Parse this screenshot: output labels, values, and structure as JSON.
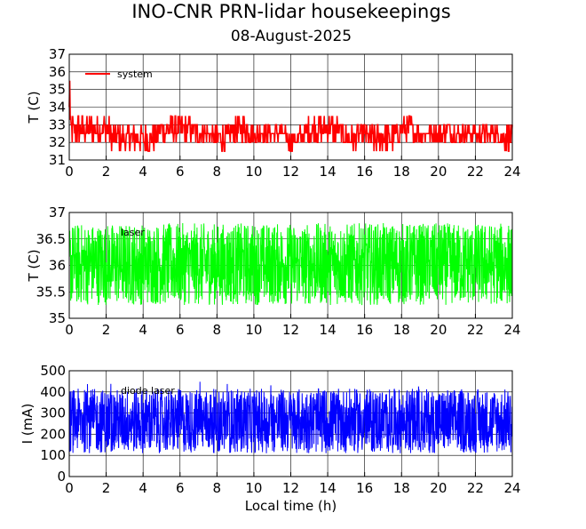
{
  "title": "INO-CNR PRN-lidar housekeepings",
  "subtitle": "08-August-2025",
  "chart_data": [
    {
      "type": "line",
      "ylabel": "T (C)",
      "xlabel": "",
      "xlim": [
        0,
        24
      ],
      "ylim": [
        31,
        37
      ],
      "xticks": [
        0,
        2,
        4,
        6,
        8,
        10,
        12,
        14,
        16,
        18,
        20,
        22,
        24
      ],
      "yticks": [
        31,
        32,
        33,
        34,
        35,
        36,
        37
      ],
      "grid": true,
      "legend_position": "top-left",
      "series": [
        {
          "name": "system",
          "color": "#ff0000",
          "x": [
            0.0,
            0.02,
            0.04,
            0.1,
            0.5,
            1.0,
            1.5,
            2.0,
            2.5,
            3.0,
            3.5,
            4.0,
            4.5,
            5.0,
            5.5,
            6.0,
            6.5,
            7.0,
            7.5,
            8.0,
            8.5,
            9.0,
            9.5,
            10.0,
            10.5,
            11.0,
            11.5,
            12.0,
            12.5,
            13.0,
            13.5,
            14.0,
            14.5,
            15.0,
            15.5,
            16.0,
            16.5,
            17.0,
            17.5,
            18.0,
            18.5,
            19.0,
            19.5,
            20.0,
            20.5,
            21.0,
            21.5,
            22.0,
            22.5,
            23.0,
            23.5,
            24.0
          ],
          "y": [
            34.0,
            36.5,
            33.5,
            32.5,
            33.0,
            32.5,
            32.5,
            33.0,
            32.0,
            32.5,
            32.5,
            32.0,
            32.5,
            33.0,
            33.0,
            33.0,
            32.5,
            32.5,
            32.5,
            32.0,
            32.5,
            33.0,
            33.0,
            32.5,
            32.5,
            32.5,
            32.5,
            32.0,
            32.5,
            33.0,
            33.0,
            33.0,
            32.5,
            32.5,
            32.5,
            32.5,
            32.0,
            32.5,
            32.5,
            32.5,
            33.0,
            32.5,
            32.5,
            32.5,
            33.0,
            32.5,
            32.5,
            32.5,
            33.0,
            32.5,
            32.5,
            32.0
          ],
          "band_low": [
            31.5,
            31.5,
            31.5,
            31.5,
            32.0,
            32.0,
            32.0,
            32.0,
            31.5,
            31.5,
            31.5,
            31.5,
            31.5,
            32.0,
            32.0,
            32.0,
            32.0,
            32.0,
            32.0,
            31.5,
            31.5,
            32.0,
            32.0,
            32.0,
            32.0,
            32.0,
            32.0,
            31.5,
            31.5,
            32.0,
            32.0,
            32.0,
            32.0,
            31.5,
            31.5,
            32.0,
            31.5,
            31.5,
            31.5,
            32.0,
            32.0,
            32.0,
            32.0,
            32.0,
            32.0,
            32.0,
            32.0,
            32.0,
            32.0,
            32.0,
            31.5,
            31.5
          ],
          "band_high": [
            34.0,
            36.5,
            33.5,
            33.5,
            33.5,
            33.5,
            33.5,
            33.5,
            33.0,
            33.0,
            33.0,
            33.0,
            33.0,
            33.5,
            33.5,
            33.5,
            33.5,
            33.0,
            33.0,
            33.0,
            33.0,
            33.5,
            33.5,
            33.0,
            33.0,
            33.0,
            33.0,
            32.5,
            33.0,
            33.5,
            33.5,
            33.5,
            33.5,
            33.0,
            33.0,
            33.0,
            33.0,
            33.0,
            33.0,
            33.5,
            33.5,
            33.0,
            33.0,
            33.0,
            33.5,
            33.0,
            33.0,
            33.0,
            33.0,
            33.0,
            33.0,
            33.0
          ]
        }
      ]
    },
    {
      "type": "line",
      "ylabel": "T (C)",
      "xlabel": "",
      "xlim": [
        0,
        24
      ],
      "ylim": [
        35,
        37
      ],
      "xticks": [
        0,
        2,
        4,
        6,
        8,
        10,
        12,
        14,
        16,
        18,
        20,
        22,
        24
      ],
      "yticks": [
        35,
        35.5,
        36,
        36.5,
        37
      ],
      "ytick_labels": [
        "35",
        "35.5",
        "36",
        "36.5",
        "37"
      ],
      "grid": true,
      "legend_position": "top-left",
      "series": [
        {
          "name": "laser",
          "color": "#00ff00",
          "mean": 36.0,
          "band_low": 35.25,
          "band_high": 36.8
        }
      ]
    },
    {
      "type": "line",
      "ylabel": "I (mA)",
      "xlabel": "Local time (h)",
      "xlim": [
        0,
        24
      ],
      "ylim": [
        0,
        500
      ],
      "xticks": [
        0,
        2,
        4,
        6,
        8,
        10,
        12,
        14,
        16,
        18,
        20,
        22,
        24
      ],
      "yticks": [
        0,
        100,
        200,
        300,
        400,
        500
      ],
      "grid": true,
      "legend_position": "top-left",
      "series": [
        {
          "name": "diode laser",
          "color": "#0000ff",
          "mean": 265,
          "band_low": 110,
          "band_high": 415,
          "spike_max": 450
        }
      ]
    }
  ]
}
